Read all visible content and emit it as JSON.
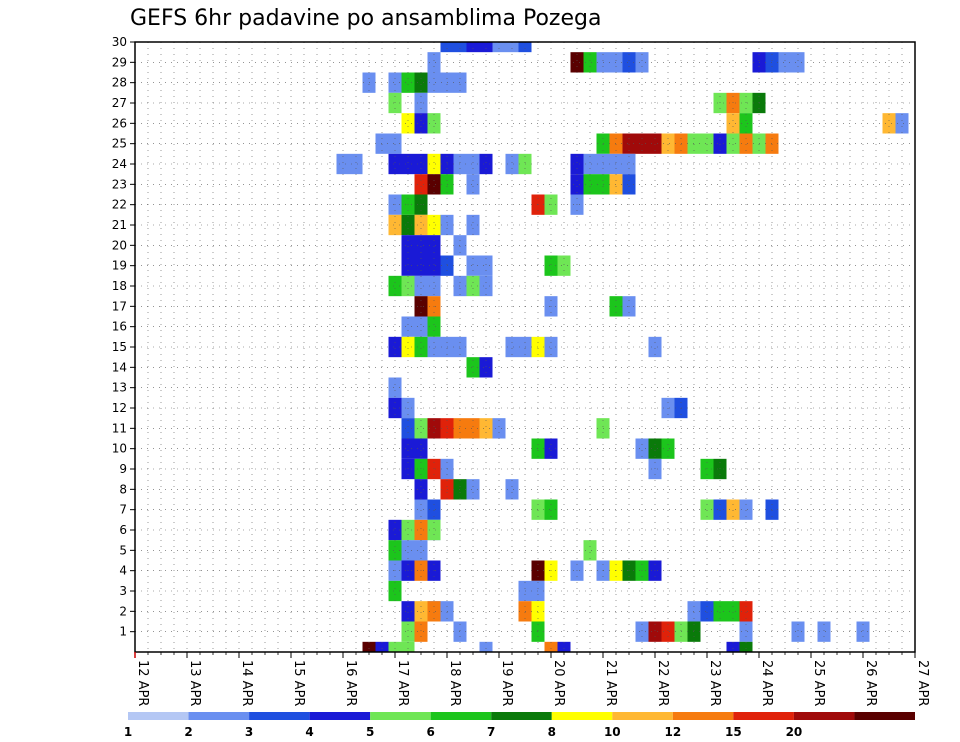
{
  "chart_data": {
    "type": "heatmap",
    "title": "GEFS 6hr padavine po ansamblima Pozega",
    "xlabel": "",
    "ylabel": "",
    "x_tick_labels": [
      "12 APR",
      "13 APR",
      "14 APR",
      "15 APR",
      "16 APR",
      "17 APR",
      "18 APR",
      "19 APR",
      "20 APR",
      "21 APR",
      "22 APR",
      "23 APR",
      "24 APR",
      "25 APR",
      "26 APR",
      "27 APR"
    ],
    "y_tick_labels": [
      "1",
      "2",
      "3",
      "4",
      "5",
      "6",
      "7",
      "8",
      "9",
      "10",
      "11",
      "12",
      "13",
      "14",
      "15",
      "16",
      "17",
      "18",
      "19",
      "20",
      "21",
      "22",
      "23",
      "24",
      "25",
      "26",
      "27",
      "28",
      "29",
      "30"
    ],
    "y_range": [
      0,
      30
    ],
    "x_steps_6h": 61,
    "grid": true,
    "colorbar": {
      "labels": [
        "1",
        "2",
        "3",
        "4",
        "5",
        "6",
        "7",
        "8",
        "10",
        "12",
        "15",
        "20"
      ],
      "colors": [
        "#b4c7f4",
        "#6a8ff0",
        "#1f4fe0",
        "#1a1ad6",
        "#6fe655",
        "#1cc51c",
        "#0a7a0a",
        "#ffff00",
        "#ffb833",
        "#f67b0f",
        "#e0220a",
        "#a00a0a",
        "#5a0000"
      ]
    },
    "cells": [
      [
        5,
        1,
        1
      ],
      [
        4,
        30,
        2
      ],
      [
        5,
        30,
        2
      ],
      [
        6,
        30,
        3
      ],
      [
        7,
        30,
        3
      ],
      [
        8,
        30,
        1
      ],
      [
        9,
        30,
        1
      ],
      [
        10,
        30,
        2
      ],
      [
        3,
        29,
        1
      ],
      [
        14,
        29,
        12
      ],
      [
        15,
        29,
        5
      ],
      [
        16,
        29,
        1
      ],
      [
        17,
        29,
        1
      ],
      [
        18,
        29,
        2
      ],
      [
        19,
        29,
        1
      ],
      [
        28,
        29,
        3
      ],
      [
        29,
        29,
        2
      ],
      [
        30,
        29,
        1
      ],
      [
        31,
        29,
        1
      ],
      [
        43,
        29,
        3
      ],
      [
        47,
        29,
        3
      ],
      [
        48,
        29,
        4
      ],
      [
        49,
        29,
        3
      ],
      [
        50,
        29,
        2
      ],
      [
        51,
        29,
        1
      ],
      [
        52,
        29,
        5
      ],
      [
        -2,
        28,
        1
      ],
      [
        0,
        28,
        1
      ],
      [
        1,
        28,
        5
      ],
      [
        2,
        28,
        6
      ],
      [
        3,
        28,
        1
      ],
      [
        4,
        28,
        1
      ],
      [
        5,
        28,
        1
      ],
      [
        55,
        28,
        1
      ],
      [
        56,
        28,
        1
      ],
      [
        0,
        27,
        4
      ],
      [
        2,
        27,
        1
      ],
      [
        25,
        27,
        4
      ],
      [
        26,
        27,
        9
      ],
      [
        27,
        27,
        4
      ],
      [
        28,
        27,
        6
      ],
      [
        47,
        27,
        1
      ],
      [
        48,
        27,
        4
      ],
      [
        49,
        27,
        1
      ],
      [
        58,
        27,
        3
      ],
      [
        59,
        27,
        6
      ],
      [
        60,
        27,
        8
      ],
      [
        1,
        26,
        7
      ],
      [
        2,
        26,
        3
      ],
      [
        3,
        26,
        4
      ],
      [
        26,
        26,
        8
      ],
      [
        27,
        26,
        5
      ],
      [
        38,
        26,
        8
      ],
      [
        39,
        26,
        1
      ],
      [
        -1,
        25,
        1
      ],
      [
        0,
        25,
        1
      ],
      [
        16,
        25,
        5
      ],
      [
        17,
        25,
        9
      ],
      [
        18,
        25,
        11
      ],
      [
        19,
        25,
        11
      ],
      [
        20,
        25,
        11
      ],
      [
        21,
        25,
        8
      ],
      [
        22,
        25,
        9
      ],
      [
        23,
        25,
        4
      ],
      [
        24,
        25,
        4
      ],
      [
        25,
        25,
        3
      ],
      [
        26,
        25,
        4
      ],
      [
        27,
        25,
        9
      ],
      [
        28,
        25,
        4
      ],
      [
        29,
        25,
        9
      ],
      [
        50,
        25,
        1
      ],
      [
        56,
        25,
        1
      ],
      [
        57,
        25,
        5
      ],
      [
        59,
        25,
        1
      ],
      [
        60,
        25,
        3
      ],
      [
        -4,
        24,
        1
      ],
      [
        -3,
        24,
        1
      ],
      [
        0,
        24,
        3
      ],
      [
        1,
        24,
        3
      ],
      [
        2,
        24,
        3
      ],
      [
        3,
        24,
        7
      ],
      [
        4,
        24,
        3
      ],
      [
        5,
        24,
        1
      ],
      [
        6,
        24,
        1
      ],
      [
        7,
        24,
        3
      ],
      [
        9,
        24,
        1
      ],
      [
        10,
        24,
        4
      ],
      [
        14,
        24,
        3
      ],
      [
        15,
        24,
        1
      ],
      [
        16,
        24,
        1
      ],
      [
        17,
        24,
        1
      ],
      [
        18,
        24,
        1
      ],
      [
        2,
        23,
        10
      ],
      [
        3,
        23,
        12
      ],
      [
        4,
        23,
        5
      ],
      [
        6,
        23,
        1
      ],
      [
        14,
        23,
        3
      ],
      [
        15,
        23,
        5
      ],
      [
        16,
        23,
        5
      ],
      [
        17,
        23,
        8
      ],
      [
        18,
        23,
        2
      ],
      [
        0,
        22,
        1
      ],
      [
        1,
        22,
        5
      ],
      [
        2,
        22,
        6
      ],
      [
        11,
        22,
        10
      ],
      [
        12,
        22,
        4
      ],
      [
        14,
        22,
        1
      ],
      [
        47,
        22,
        1
      ],
      [
        59,
        22,
        6
      ],
      [
        60,
        22,
        12
      ],
      [
        0,
        21,
        8
      ],
      [
        1,
        21,
        6
      ],
      [
        2,
        21,
        8
      ],
      [
        3,
        21,
        7
      ],
      [
        4,
        21,
        1
      ],
      [
        6,
        21,
        1
      ],
      [
        1,
        20,
        3
      ],
      [
        2,
        20,
        3
      ],
      [
        3,
        20,
        3
      ],
      [
        5,
        20,
        1
      ],
      [
        1,
        19,
        3
      ],
      [
        2,
        19,
        3
      ],
      [
        3,
        19,
        3
      ],
      [
        4,
        19,
        2
      ],
      [
        6,
        19,
        1
      ],
      [
        7,
        19,
        1
      ],
      [
        12,
        19,
        5
      ],
      [
        13,
        19,
        4
      ],
      [
        43,
        19,
        4
      ],
      [
        52,
        19,
        5
      ],
      [
        53,
        19,
        6
      ],
      [
        56,
        19,
        1
      ],
      [
        57,
        19,
        7
      ],
      [
        58,
        19,
        1
      ],
      [
        59,
        19,
        1
      ],
      [
        60,
        19,
        3
      ],
      [
        0,
        18,
        5
      ],
      [
        1,
        18,
        4
      ],
      [
        2,
        18,
        1
      ],
      [
        3,
        18,
        1
      ],
      [
        5,
        18,
        1
      ],
      [
        6,
        18,
        4
      ],
      [
        7,
        18,
        1
      ],
      [
        47,
        18,
        1
      ],
      [
        57,
        18,
        4
      ],
      [
        58,
        18,
        4
      ],
      [
        59,
        18,
        3
      ],
      [
        2,
        17,
        12
      ],
      [
        3,
        17,
        9
      ],
      [
        12,
        17,
        1
      ],
      [
        17,
        17,
        5
      ],
      [
        18,
        17,
        1
      ],
      [
        56,
        17,
        4
      ],
      [
        1,
        16,
        1
      ],
      [
        2,
        16,
        1
      ],
      [
        3,
        16,
        5
      ],
      [
        0,
        15,
        3
      ],
      [
        1,
        15,
        7
      ],
      [
        2,
        15,
        5
      ],
      [
        3,
        15,
        1
      ],
      [
        4,
        15,
        1
      ],
      [
        5,
        15,
        1
      ],
      [
        9,
        15,
        1
      ],
      [
        10,
        15,
        1
      ],
      [
        11,
        15,
        7
      ],
      [
        12,
        15,
        1
      ],
      [
        20,
        15,
        1
      ],
      [
        57,
        15,
        3
      ],
      [
        6,
        14,
        5
      ],
      [
        7,
        14,
        3
      ],
      [
        0,
        13,
        1
      ],
      [
        0,
        12,
        3
      ],
      [
        1,
        12,
        1
      ],
      [
        21,
        12,
        1
      ],
      [
        22,
        12,
        2
      ],
      [
        1,
        11,
        2
      ],
      [
        2,
        11,
        4
      ],
      [
        3,
        11,
        11
      ],
      [
        4,
        11,
        10
      ],
      [
        5,
        11,
        9
      ],
      [
        6,
        11,
        9
      ],
      [
        7,
        11,
        8
      ],
      [
        8,
        11,
        1
      ],
      [
        16,
        11,
        4
      ],
      [
        60,
        11,
        1
      ],
      [
        1,
        10,
        3
      ],
      [
        2,
        10,
        3
      ],
      [
        11,
        10,
        5
      ],
      [
        12,
        10,
        3
      ],
      [
        19,
        10,
        1
      ],
      [
        20,
        10,
        6
      ],
      [
        21,
        10,
        5
      ],
      [
        1,
        9,
        3
      ],
      [
        2,
        9,
        5
      ],
      [
        3,
        9,
        10
      ],
      [
        4,
        9,
        1
      ],
      [
        20,
        9,
        1
      ],
      [
        24,
        9,
        5
      ],
      [
        25,
        9,
        6
      ],
      [
        2,
        8,
        3
      ],
      [
        4,
        8,
        10
      ],
      [
        5,
        8,
        6
      ],
      [
        6,
        8,
        1
      ],
      [
        9,
        8,
        1
      ],
      [
        2,
        7,
        1
      ],
      [
        3,
        7,
        2
      ],
      [
        11,
        7,
        4
      ],
      [
        12,
        7,
        5
      ],
      [
        24,
        7,
        4
      ],
      [
        25,
        7,
        2
      ],
      [
        26,
        7,
        8
      ],
      [
        27,
        7,
        1
      ],
      [
        29,
        7,
        2
      ],
      [
        3,
        6,
        1
      ],
      [
        0,
        6,
        3
      ],
      [
        1,
        6,
        4
      ],
      [
        2,
        6,
        9
      ],
      [
        3,
        6,
        4
      ],
      [
        0,
        5,
        5
      ],
      [
        1,
        5,
        1
      ],
      [
        2,
        5,
        1
      ],
      [
        15,
        5,
        4
      ],
      [
        0,
        4,
        1
      ],
      [
        1,
        4,
        3
      ],
      [
        2,
        4,
        9
      ],
      [
        3,
        4,
        3
      ],
      [
        11,
        4,
        12
      ],
      [
        12,
        4,
        7
      ],
      [
        14,
        4,
        1
      ],
      [
        16,
        4,
        1
      ],
      [
        17,
        4,
        7
      ],
      [
        18,
        4,
        6
      ],
      [
        19,
        4,
        5
      ],
      [
        20,
        4,
        3
      ],
      [
        0,
        3,
        5
      ],
      [
        10,
        3,
        1
      ],
      [
        11,
        3,
        1
      ],
      [
        60,
        3,
        1
      ],
      [
        3,
        2,
        1
      ],
      [
        1,
        2,
        3
      ],
      [
        2,
        2,
        8
      ],
      [
        3,
        2,
        9
      ],
      [
        4,
        2,
        1
      ],
      [
        10,
        2,
        9
      ],
      [
        11,
        2,
        7
      ],
      [
        23,
        2,
        1
      ],
      [
        24,
        2,
        2
      ],
      [
        25,
        2,
        5
      ],
      [
        26,
        2,
        5
      ],
      [
        27,
        2,
        10
      ],
      [
        60,
        2,
        1
      ],
      [
        1,
        1,
        4
      ],
      [
        2,
        1,
        9
      ],
      [
        11,
        1,
        5
      ],
      [
        19,
        1,
        1
      ],
      [
        20,
        1,
        11
      ],
      [
        21,
        1,
        10
      ],
      [
        22,
        1,
        4
      ],
      [
        23,
        1,
        6
      ],
      [
        27,
        1,
        1
      ],
      [
        31,
        1,
        1
      ],
      [
        33,
        1,
        1
      ],
      [
        36,
        1,
        1
      ],
      [
        41,
        1,
        1
      ],
      [
        42,
        1,
        3
      ],
      [
        43,
        1,
        1
      ],
      [
        0,
        0,
        4
      ],
      [
        1,
        0,
        4
      ],
      [
        -1,
        0,
        3
      ],
      [
        -2,
        0,
        12
      ],
      [
        7,
        0,
        1
      ],
      [
        12,
        0,
        9
      ],
      [
        13,
        0,
        3
      ],
      [
        26,
        0,
        3
      ],
      [
        27,
        0,
        6
      ]
    ]
  }
}
